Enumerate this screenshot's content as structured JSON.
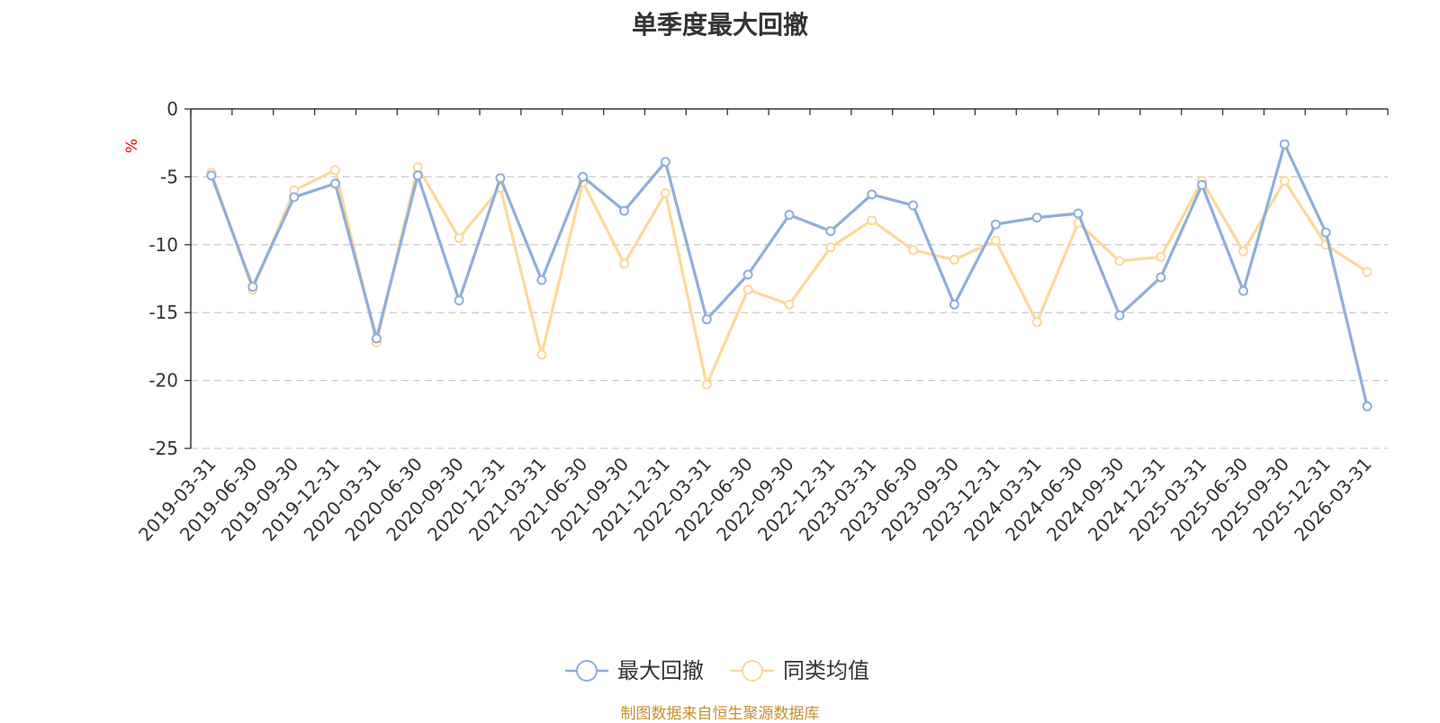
{
  "chart_data": {
    "type": "line",
    "title": "单季度最大回撤",
    "ylabel": "%",
    "ylim": [
      -25,
      0
    ],
    "yticks": [
      0,
      -5,
      -10,
      -15,
      -20,
      -25
    ],
    "grid": "horizontal dashed",
    "legend_position": "bottom-center",
    "categories": [
      "2019-03-31",
      "2019-06-30",
      "2019-09-30",
      "2019-12-31",
      "2020-03-31",
      "2020-06-30",
      "2020-09-30",
      "2020-12-31",
      "2021-03-31",
      "2021-06-30",
      "2021-09-30",
      "2021-12-31",
      "2022-03-31",
      "2022-06-30",
      "2022-09-30",
      "2022-12-31",
      "2023-03-31",
      "2023-06-30",
      "2023-09-30",
      "2023-12-31",
      "2024-03-31",
      "2024-06-30",
      "2024-09-30",
      "2024-12-31",
      "2025-03-31",
      "2025-06-30",
      "2025-09-30",
      "2025-12-31",
      "2026-03-31"
    ],
    "series": [
      {
        "name": "最大回撤",
        "color": "#8eaedb",
        "values": [
          -4.9,
          -13.1,
          -6.5,
          -5.5,
          -16.9,
          -4.9,
          -14.1,
          -5.1,
          -12.6,
          -5.0,
          -7.5,
          -3.9,
          -15.5,
          -12.2,
          -7.8,
          -9.0,
          -6.3,
          -7.1,
          -14.4,
          -8.5,
          -8.0,
          -7.7,
          -15.2,
          -12.4,
          -5.6,
          -13.4,
          -2.6,
          -9.1,
          -21.9
        ]
      },
      {
        "name": "同类均值",
        "color": "#fcd89a",
        "values": [
          -4.7,
          -13.3,
          -6.0,
          -4.5,
          -17.2,
          -4.3,
          -9.5,
          -5.8,
          -18.1,
          -5.4,
          -11.4,
          -6.2,
          -20.3,
          -13.3,
          -14.4,
          -10.2,
          -8.2,
          -10.4,
          -11.1,
          -9.7,
          -15.7,
          -8.4,
          -11.2,
          -10.9,
          -5.3,
          -10.5,
          -5.3,
          -10.0,
          -12.0
        ]
      }
    ]
  },
  "source_note": "制图数据来自恒生聚源数据库",
  "colors": {
    "axis": "#333333",
    "grid": "#cccccc",
    "ylabel": "#ff0000",
    "source_note": "#c8902a"
  }
}
